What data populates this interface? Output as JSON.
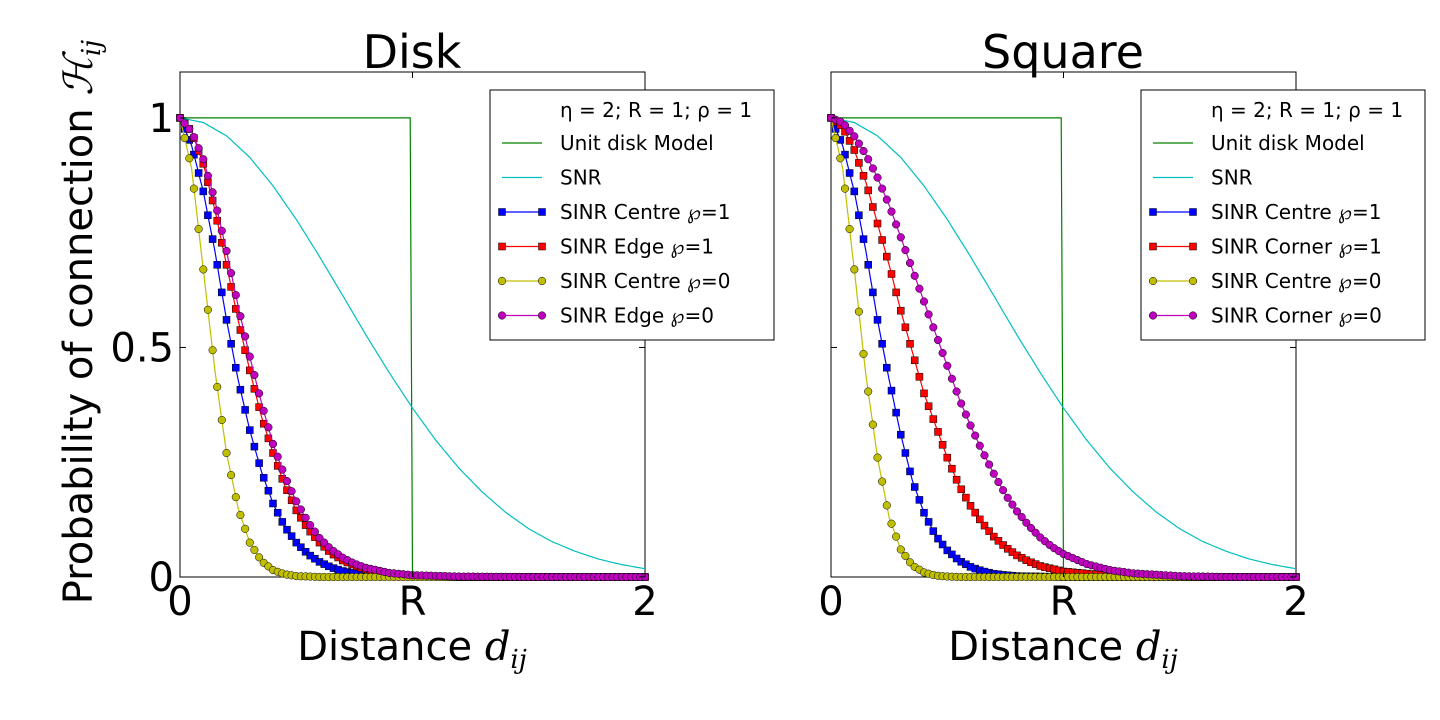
{
  "figure": {
    "ylabel_text": "Probability of connection ",
    "ylabel_math": "ℋ",
    "ylabel_sub": "ij",
    "xlabel_text": "Distance ",
    "xlabel_math": "d",
    "xlabel_sub": "ij"
  },
  "chart_data": [
    {
      "type": "line",
      "title": "Disk",
      "xlim": [
        0,
        2
      ],
      "ylim": [
        0,
        1.1
      ],
      "x_ticks": [
        0,
        1,
        2
      ],
      "x_tick_labels": [
        "0",
        "R",
        "2"
      ],
      "y_ticks": [
        0,
        0.5,
        1
      ],
      "y_tick_labels": [
        "0",
        "0.5",
        "1"
      ],
      "grid": false,
      "legend_position": "top-right",
      "legend_title": "η = 2; R = 1; ρ = 1",
      "series": [
        {
          "name": "Unit disk Model",
          "color": "#008000",
          "marker": "none",
          "x": [
            0,
            0.99,
            1.0,
            2.0
          ],
          "y": [
            1.0,
            1.0,
            0.0,
            0.0
          ]
        },
        {
          "name": "SNR",
          "color": "#00bfbf",
          "marker": "none",
          "x": [
            0,
            0.1,
            0.2,
            0.3,
            0.4,
            0.5,
            0.6,
            0.7,
            0.8,
            0.9,
            1.0,
            1.1,
            1.2,
            1.3,
            1.4,
            1.5,
            1.6,
            1.7,
            1.8,
            1.9,
            2.0
          ],
          "y": [
            1.0,
            0.99,
            0.961,
            0.914,
            0.852,
            0.779,
            0.698,
            0.613,
            0.527,
            0.445,
            0.368,
            0.298,
            0.237,
            0.185,
            0.141,
            0.105,
            0.077,
            0.056,
            0.039,
            0.027,
            0.018
          ]
        },
        {
          "name": "SINR Centre ℘=1",
          "color": "#0000ff",
          "marker": "square",
          "x": [
            0,
            0.05,
            0.1,
            0.15,
            0.2,
            0.25,
            0.3,
            0.35,
            0.4,
            0.45,
            0.5,
            0.55,
            0.6,
            0.65,
            0.7,
            0.75,
            0.8,
            0.9,
            1.0,
            1.2,
            1.5,
            2.0
          ],
          "y": [
            1.0,
            0.94,
            0.84,
            0.71,
            0.56,
            0.43,
            0.32,
            0.23,
            0.16,
            0.11,
            0.075,
            0.05,
            0.033,
            0.021,
            0.013,
            0.008,
            0.005,
            0.002,
            0.001,
            0.0,
            0.0,
            0.0
          ]
        },
        {
          "name": "SINR Edge ℘=1",
          "color": "#ff0000",
          "marker": "square",
          "x": [
            0,
            0.05,
            0.1,
            0.15,
            0.2,
            0.25,
            0.3,
            0.35,
            0.4,
            0.45,
            0.5,
            0.55,
            0.6,
            0.65,
            0.7,
            0.75,
            0.8,
            0.9,
            1.0,
            1.2,
            1.5,
            2.0
          ],
          "y": [
            1.0,
            0.97,
            0.9,
            0.8,
            0.68,
            0.56,
            0.45,
            0.35,
            0.27,
            0.2,
            0.145,
            0.105,
            0.075,
            0.052,
            0.036,
            0.025,
            0.017,
            0.007,
            0.003,
            0.0,
            0.0,
            0.0
          ]
        },
        {
          "name": "SINR Centre ℘=0",
          "color": "#bfbf00",
          "marker": "circle",
          "x": [
            0,
            0.05,
            0.1,
            0.15,
            0.2,
            0.25,
            0.3,
            0.35,
            0.4,
            0.45,
            0.5,
            0.55,
            0.6,
            0.7,
            0.8,
            1.0,
            1.5,
            2.0
          ],
          "y": [
            1.0,
            0.89,
            0.67,
            0.45,
            0.27,
            0.15,
            0.075,
            0.035,
            0.015,
            0.006,
            0.002,
            0.001,
            0.0,
            0.0,
            0.0,
            0.0,
            0.0,
            0.0
          ]
        },
        {
          "name": "SINR Edge ℘=0",
          "color": "#bf00bf",
          "marker": "circle",
          "x": [
            0,
            0.05,
            0.1,
            0.15,
            0.2,
            0.25,
            0.3,
            0.35,
            0.4,
            0.45,
            0.5,
            0.55,
            0.6,
            0.65,
            0.7,
            0.75,
            0.8,
            0.9,
            1.0,
            1.2,
            1.5,
            2.0
          ],
          "y": [
            1.0,
            0.97,
            0.91,
            0.82,
            0.71,
            0.59,
            0.48,
            0.38,
            0.29,
            0.22,
            0.165,
            0.12,
            0.085,
            0.06,
            0.042,
            0.029,
            0.02,
            0.009,
            0.004,
            0.001,
            0.0,
            0.0
          ]
        }
      ]
    },
    {
      "type": "line",
      "title": "Square",
      "xlim": [
        0,
        2
      ],
      "ylim": [
        0,
        1.1
      ],
      "x_ticks": [
        0,
        1,
        2
      ],
      "x_tick_labels": [
        "0",
        "R",
        "2"
      ],
      "y_ticks": [
        0,
        0.5,
        1
      ],
      "y_tick_labels": [
        "",
        "",
        ""
      ],
      "grid": false,
      "legend_position": "top-right",
      "legend_title": "η = 2; R = 1; ρ = 1",
      "series": [
        {
          "name": "Unit disk Model",
          "color": "#008000",
          "marker": "none",
          "x": [
            0,
            0.99,
            1.0,
            2.0
          ],
          "y": [
            1.0,
            1.0,
            0.0,
            0.0
          ]
        },
        {
          "name": "SNR",
          "color": "#00bfbf",
          "marker": "none",
          "x": [
            0,
            0.1,
            0.2,
            0.3,
            0.4,
            0.5,
            0.6,
            0.7,
            0.8,
            0.9,
            1.0,
            1.1,
            1.2,
            1.3,
            1.4,
            1.5,
            1.6,
            1.7,
            1.8,
            1.9,
            2.0
          ],
          "y": [
            1.0,
            0.99,
            0.961,
            0.914,
            0.852,
            0.779,
            0.698,
            0.613,
            0.527,
            0.445,
            0.368,
            0.298,
            0.237,
            0.185,
            0.141,
            0.105,
            0.077,
            0.056,
            0.039,
            0.027,
            0.018
          ]
        },
        {
          "name": "SINR Centre ℘=1",
          "color": "#0000ff",
          "marker": "square",
          "x": [
            0,
            0.05,
            0.1,
            0.15,
            0.2,
            0.25,
            0.3,
            0.35,
            0.4,
            0.45,
            0.5,
            0.55,
            0.6,
            0.65,
            0.7,
            0.75,
            0.8,
            0.9,
            1.0,
            1.2,
            1.5,
            2.0
          ],
          "y": [
            1.0,
            0.94,
            0.84,
            0.71,
            0.56,
            0.43,
            0.31,
            0.21,
            0.14,
            0.09,
            0.058,
            0.036,
            0.022,
            0.013,
            0.007,
            0.004,
            0.002,
            0.001,
            0.0,
            0.0,
            0.0,
            0.0
          ]
        },
        {
          "name": "SINR Corner ℘=1",
          "color": "#ff0000",
          "marker": "square",
          "x": [
            0,
            0.05,
            0.1,
            0.15,
            0.2,
            0.25,
            0.3,
            0.35,
            0.4,
            0.45,
            0.5,
            0.55,
            0.6,
            0.65,
            0.7,
            0.75,
            0.8,
            0.85,
            0.9,
            1.0,
            1.2,
            1.5,
            2.0
          ],
          "y": [
            1.0,
            0.98,
            0.93,
            0.86,
            0.77,
            0.68,
            0.58,
            0.49,
            0.4,
            0.33,
            0.26,
            0.2,
            0.155,
            0.118,
            0.088,
            0.065,
            0.047,
            0.034,
            0.024,
            0.012,
            0.003,
            0.0,
            0.0
          ]
        },
        {
          "name": "SINR Centre ℘=0",
          "color": "#bfbf00",
          "marker": "circle",
          "x": [
            0,
            0.05,
            0.1,
            0.15,
            0.2,
            0.25,
            0.3,
            0.35,
            0.4,
            0.45,
            0.5,
            0.55,
            0.6,
            0.7,
            0.8,
            1.0,
            1.5,
            2.0
          ],
          "y": [
            1.0,
            0.89,
            0.67,
            0.44,
            0.26,
            0.13,
            0.06,
            0.025,
            0.01,
            0.003,
            0.001,
            0.0,
            0.0,
            0.0,
            0.0,
            0.0,
            0.0,
            0.0
          ]
        },
        {
          "name": "SINR Corner ℘=0",
          "color": "#bf00bf",
          "marker": "circle",
          "x": [
            0,
            0.05,
            0.1,
            0.15,
            0.2,
            0.25,
            0.3,
            0.35,
            0.4,
            0.45,
            0.5,
            0.55,
            0.6,
            0.65,
            0.7,
            0.75,
            0.8,
            0.85,
            0.9,
            0.95,
            1.0,
            1.1,
            1.2,
            1.3,
            1.5,
            1.7,
            2.0
          ],
          "y": [
            1.0,
            0.99,
            0.96,
            0.92,
            0.87,
            0.81,
            0.74,
            0.67,
            0.6,
            0.53,
            0.46,
            0.39,
            0.33,
            0.275,
            0.225,
            0.18,
            0.143,
            0.112,
            0.086,
            0.066,
            0.05,
            0.028,
            0.015,
            0.008,
            0.002,
            0.0,
            0.0
          ]
        }
      ]
    }
  ]
}
